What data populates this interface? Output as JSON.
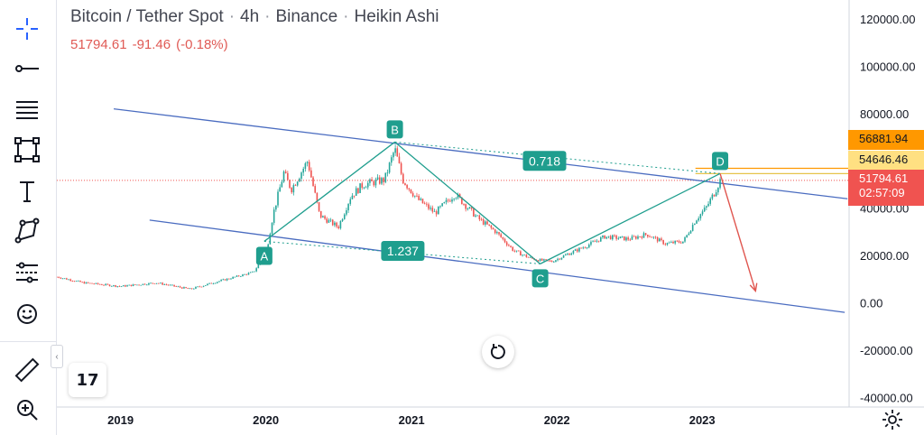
{
  "legend": {
    "symbol": "Bitcoin / Tether Spot",
    "interval": "4h",
    "exchange": "Binance",
    "chart_style": "Heikin Ashi",
    "last": "51794.61",
    "change": "-91.46",
    "change_pct": "(-0.18%)"
  },
  "colors": {
    "channel": "#4a6cc0",
    "pattern": "#1f9e8e",
    "arrow": "#e0564f",
    "candle_up": "#26a69a",
    "candle_down": "#ef5350",
    "orange": "#ff9800",
    "red_label": "#f05350"
  },
  "price_labels": {
    "level_orange": "56881.94",
    "level_yellow": "54646.46",
    "last_price": "51794.61",
    "countdown": "02:57:09"
  },
  "toolbar": {
    "icons": [
      "crosshair-icon",
      "trend-line-icon",
      "fib-tools-icon",
      "patterns-icon",
      "text-icon",
      "geometric-shapes-icon",
      "prediction-tools-icon",
      "emoji-icon",
      "ruler-icon",
      "zoom-in-icon"
    ]
  },
  "logo_text": "17",
  "chart_data": {
    "type": "line",
    "title": "Bitcoin / Tether Spot · 4h · Binance · Heikin Ashi",
    "x_axis": {
      "type": "date",
      "tick_labels": [
        "2019",
        "2020",
        "2021",
        "2022",
        "2023"
      ],
      "tick_dates": [
        "2019-01-01",
        "2020-01-01",
        "2021-01-01",
        "2022-01-01",
        "2023-01-01"
      ],
      "range": [
        "2018-07-25",
        "2024-01-05"
      ]
    },
    "y_axis": {
      "range": [
        -44000,
        128000
      ],
      "tick_labels": [
        "120000.00",
        "100000.00",
        "80000.00",
        "60000.00",
        "40000.00",
        "20000.00",
        "0.00",
        "-20000.00",
        "-40000.00"
      ],
      "tick_values": [
        120000,
        100000,
        80000,
        60000,
        40000,
        20000,
        0,
        -20000,
        -40000
      ]
    },
    "price_series": {
      "name": "BTCUSDT",
      "points": [
        [
          "2018-07-25",
          11000
        ],
        [
          "2018-10-01",
          8500
        ],
        [
          "2019-01-01",
          7000
        ],
        [
          "2019-04-01",
          8500
        ],
        [
          "2019-06-25",
          5800
        ],
        [
          "2019-09-01",
          9000
        ],
        [
          "2019-12-01",
          13000
        ],
        [
          "2019-12-29",
          20000
        ],
        [
          "2020-01-05",
          24000
        ],
        [
          "2020-01-20",
          38000
        ],
        [
          "2020-02-15",
          55000
        ],
        [
          "2020-03-05",
          48000
        ],
        [
          "2020-04-15",
          60000
        ],
        [
          "2020-05-15",
          37000
        ],
        [
          "2020-07-01",
          32000
        ],
        [
          "2020-08-01",
          45000
        ],
        [
          "2020-09-01",
          50000
        ],
        [
          "2020-10-25",
          52000
        ],
        [
          "2020-11-20",
          65000
        ],
        [
          "2020-12-10",
          52000
        ],
        [
          "2021-01-15",
          44000
        ],
        [
          "2021-03-01",
          38000
        ],
        [
          "2021-04-20",
          46000
        ],
        [
          "2021-06-15",
          36000
        ],
        [
          "2021-08-01",
          30000
        ],
        [
          "2021-09-15",
          22000
        ],
        [
          "2021-10-25",
          19000
        ],
        [
          "2021-11-20",
          18000
        ],
        [
          "2021-12-20",
          17500
        ],
        [
          "2022-01-20",
          20000
        ],
        [
          "2022-03-15",
          24000
        ],
        [
          "2022-05-01",
          28000
        ],
        [
          "2022-07-01",
          27000
        ],
        [
          "2022-08-15",
          29000
        ],
        [
          "2022-10-01",
          25000
        ],
        [
          "2022-11-15",
          26000
        ],
        [
          "2022-12-15",
          35000
        ],
        [
          "2023-01-10",
          40000
        ],
        [
          "2023-01-30",
          46000
        ],
        [
          "2023-02-15",
          51794.61
        ]
      ]
    },
    "channel_lines": [
      {
        "from": [
          "2018-12-15",
          82000
        ],
        "to": [
          "2024-01-01",
          44000
        ]
      },
      {
        "from": [
          "2019-03-15",
          35000
        ],
        "to": [
          "2023-12-25",
          -4000
        ]
      }
    ],
    "pattern_points": [
      {
        "label": "A",
        "date": "2019-12-28",
        "price": 26000
      },
      {
        "label": "B",
        "date": "2020-11-20",
        "price": 68000
      },
      {
        "label": "C",
        "date": "2021-11-20",
        "price": 16500
      },
      {
        "label": "D",
        "date": "2023-02-15",
        "price": 54646.46
      }
    ],
    "ratio_labels": [
      {
        "text": "0.718",
        "date": "2021-12-01",
        "price": 60000
      },
      {
        "text": "1.237",
        "date": "2020-12-10",
        "price": 22000
      }
    ],
    "projection_arrow": {
      "from": [
        "2023-02-15",
        54646.46
      ],
      "to": [
        "2023-05-15",
        5000
      ]
    },
    "horizontal_levels": [
      {
        "price": 56881.94,
        "color": "#ff9800",
        "from": "2022-12-15"
      },
      {
        "price": 54646.46,
        "color": "#e6c34a",
        "from": "2022-12-15"
      }
    ],
    "last_price_line": 51794.61,
    "grid": false
  }
}
